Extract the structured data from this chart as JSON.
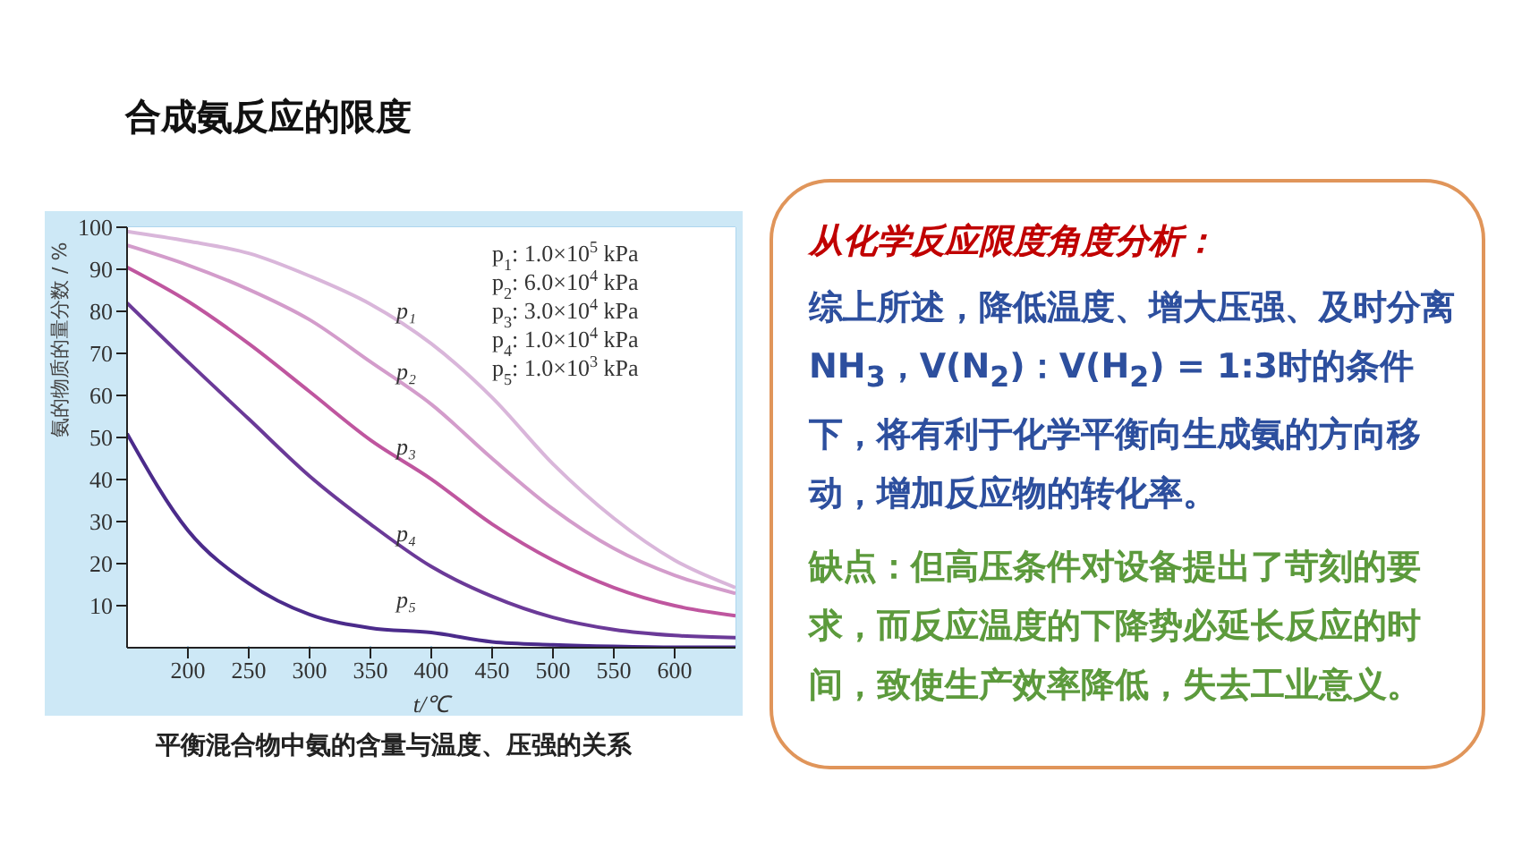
{
  "chart_data": {
    "type": "line",
    "title": "合成氨反应的限度",
    "xlabel": "t/℃",
    "ylabel": "氨的物质的量分数 / %",
    "x": [
      150,
      200,
      250,
      300,
      350,
      400,
      450,
      500,
      550,
      600,
      650
    ],
    "series": [
      {
        "name": "p₁",
        "color": "#d9b6da",
        "values": [
          99,
          96.7,
          93.8,
          88.4,
          81.7,
          72.3,
          59.5,
          43.7,
          30.8,
          20.8,
          14.3
        ]
      },
      {
        "name": "p₂",
        "color": "#d39ccb",
        "values": [
          95.7,
          91,
          85.2,
          78,
          68,
          57.9,
          45,
          33,
          23.6,
          17.2,
          12.9
        ]
      },
      {
        "name": "p₃",
        "color": "#bf569f",
        "values": [
          90.5,
          82.4,
          72.3,
          60.9,
          49.4,
          40.1,
          29.4,
          20.8,
          14.3,
          10,
          7.6
        ]
      },
      {
        "name": "p₄",
        "color": "#6b3a98",
        "values": [
          82,
          68,
          54.4,
          40.8,
          29.4,
          19.3,
          12.2,
          7.2,
          4.3,
          2.9,
          2.4
        ]
      },
      {
        "name": "p₅",
        "color": "#4b2b8b",
        "values": [
          50.9,
          27.9,
          15.3,
          7.9,
          4.7,
          3.6,
          1.4,
          0.7,
          0.3,
          0.1,
          0.1
        ]
      }
    ],
    "xlim": [
      150,
      650
    ],
    "xticks": [
      200,
      250,
      300,
      350,
      400,
      450,
      500,
      550,
      600
    ],
    "ylim": [
      0,
      100
    ],
    "yticks": [
      10,
      20,
      30,
      40,
      50,
      60,
      70,
      80,
      90,
      100
    ],
    "grid": true,
    "legend": false,
    "marker": "none",
    "line_style": "solid",
    "annotations": [
      "p$_{1}$: 1.0×10$^{5}$ kPa",
      "p$_{2}$: 6.0×10$^{4}$ kPa",
      "p$_{3}$: 3.0×10$^{4}$ kPa",
      "p$_{4}$: 1.0×10$^{4}$ kPa",
      "p$_{5}$: 1.0×10$^{3}$ kPa",
      "平衡混合物中氨的含量与温度、压强的关系",
      "从化学反应限度角度分析：",
      "综上所述，降低温度、增大压强、及时分离NH$_{3}$，V(N$_{2}$)：V(H$_{2}$) = 1:3时的条件下，将有利于化学平衡向生成氨的方向移动，增加反应物的转化率。",
      "缺点：但高压条件对设备提出了苛刻的要求，而反应温度的下降势必延长反应的时间，致使生产效率降低，失去工业意义。"
    ]
  }
}
